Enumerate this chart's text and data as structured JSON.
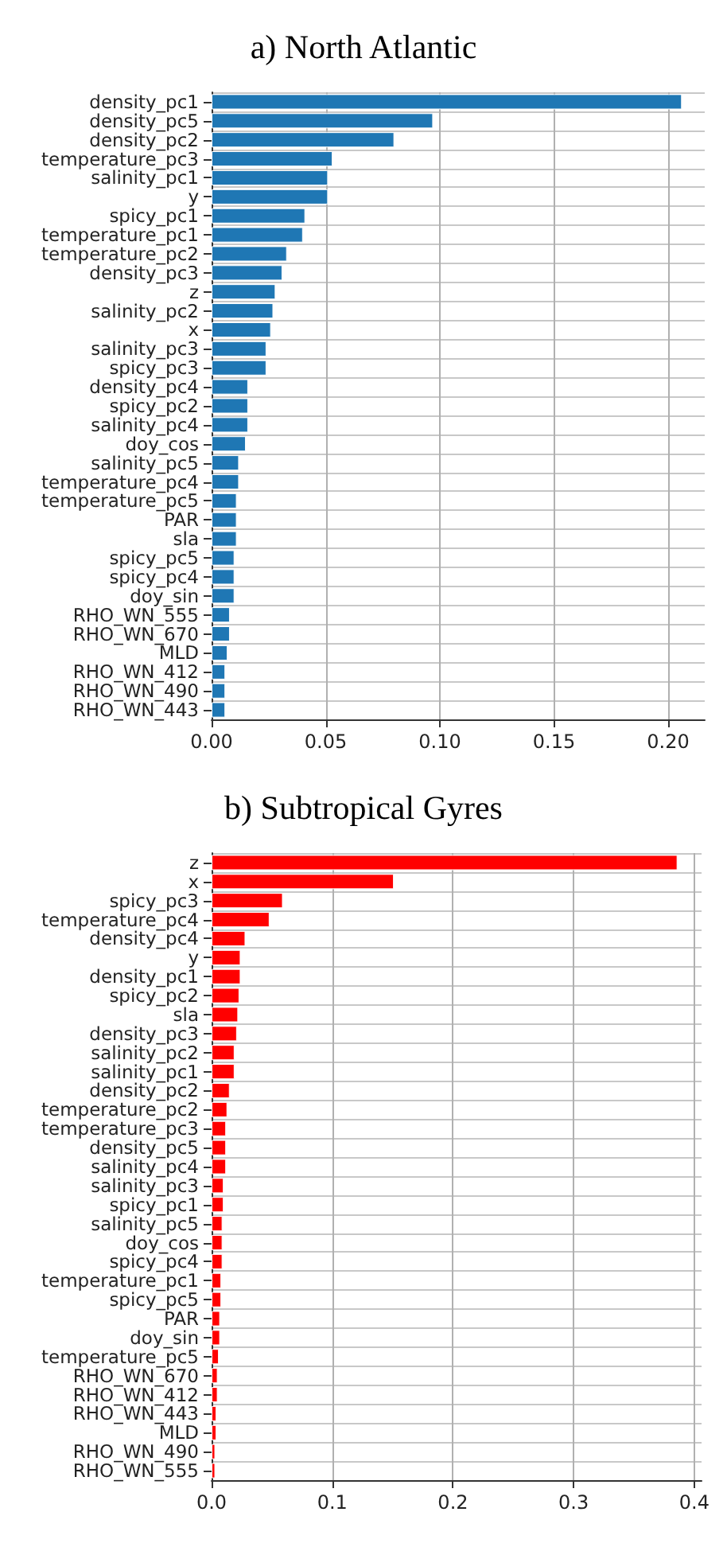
{
  "chart_data": [
    {
      "type": "bar",
      "orientation": "horizontal",
      "title": "a) North Atlantic",
      "categories": [
        "density_pc1",
        "density_pc5",
        "density_pc2",
        "temperature_pc3",
        "salinity_pc1",
        "y",
        "spicy_pc1",
        "temperature_pc1",
        "temperature_pc2",
        "density_pc3",
        "z",
        "salinity_pc2",
        "x",
        "salinity_pc3",
        "spicy_pc3",
        "density_pc4",
        "spicy_pc2",
        "salinity_pc4",
        "doy_cos",
        "salinity_pc5",
        "temperature_pc4",
        "temperature_pc5",
        "PAR",
        "sla",
        "spicy_pc5",
        "spicy_pc4",
        "doy_sin",
        "RHO_WN_555",
        "RHO_WN_670",
        "MLD",
        "RHO_WN_412",
        "RHO_WN_490",
        "RHO_WN_443"
      ],
      "values": [
        0.206,
        0.097,
        0.08,
        0.053,
        0.051,
        0.051,
        0.041,
        0.04,
        0.033,
        0.031,
        0.028,
        0.027,
        0.026,
        0.024,
        0.024,
        0.016,
        0.016,
        0.016,
        0.015,
        0.012,
        0.012,
        0.011,
        0.011,
        0.011,
        0.01,
        0.01,
        0.01,
        0.008,
        0.008,
        0.007,
        0.006,
        0.006,
        0.006
      ],
      "color": "#1f77b4",
      "xlim": [
        0,
        0.216
      ],
      "xticks": [
        {
          "value": 0,
          "label": "0.00"
        },
        {
          "value": 0.05,
          "label": "0.05"
        },
        {
          "value": 0.1,
          "label": "0.10"
        },
        {
          "value": 0.15,
          "label": "0.15"
        },
        {
          "value": 0.2,
          "label": "0.20"
        }
      ],
      "grid": true
    },
    {
      "type": "bar",
      "orientation": "horizontal",
      "title": "b) Subtropical Gyres",
      "categories": [
        "z",
        "x",
        "spicy_pc3",
        "temperature_pc4",
        "density_pc4",
        "y",
        "density_pc1",
        "spicy_pc2",
        "sla",
        "density_pc3",
        "salinity_pc2",
        "salinity_pc1",
        "density_pc2",
        "temperature_pc2",
        "temperature_pc3",
        "density_pc5",
        "salinity_pc4",
        "salinity_pc3",
        "spicy_pc1",
        "salinity_pc5",
        "doy_cos",
        "spicy_pc4",
        "temperature_pc1",
        "spicy_pc5",
        "PAR",
        "doy_sin",
        "temperature_pc5",
        "RHO_WN_670",
        "RHO_WN_412",
        "RHO_WN_443",
        "MLD",
        "RHO_WN_490",
        "RHO_WN_555"
      ],
      "values": [
        0.386,
        0.151,
        0.059,
        0.048,
        0.028,
        0.024,
        0.024,
        0.023,
        0.022,
        0.021,
        0.019,
        0.019,
        0.015,
        0.013,
        0.012,
        0.012,
        0.012,
        0.01,
        0.01,
        0.009,
        0.009,
        0.009,
        0.008,
        0.008,
        0.007,
        0.007,
        0.006,
        0.005,
        0.005,
        0.004,
        0.004,
        0.003,
        0.003
      ],
      "color": "#ff0000",
      "xlim": [
        0,
        0.406
      ],
      "xticks": [
        {
          "value": 0,
          "label": "0.0"
        },
        {
          "value": 0.1,
          "label": "0.1"
        },
        {
          "value": 0.2,
          "label": "0.2"
        },
        {
          "value": 0.3,
          "label": "0.3"
        },
        {
          "value": 0.4,
          "label": "0.4"
        }
      ],
      "grid": true
    }
  ]
}
